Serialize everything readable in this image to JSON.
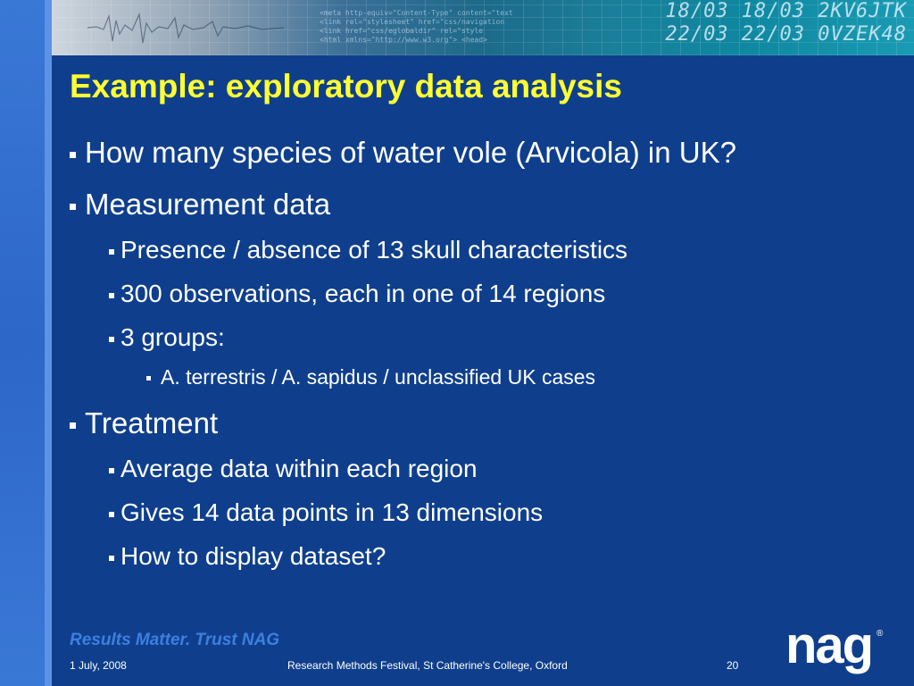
{
  "slide": {
    "title": "Example: exploratory data analysis",
    "bullets": [
      {
        "level": 1,
        "text": "How many species of water vole (Arvicola) in UK?"
      },
      {
        "level": 1,
        "text": "Measurement data"
      },
      {
        "level": 2,
        "text": "Presence / absence of 13 skull characteristics"
      },
      {
        "level": 2,
        "text": "300 observations, each in one of 14 regions"
      },
      {
        "level": 2,
        "text": "3 groups:"
      },
      {
        "level": 3,
        "text": "A. terrestris / A. sapidus / unclassified UK cases"
      },
      {
        "level": 1,
        "text": "Treatment"
      },
      {
        "level": 2,
        "text": "Average data within each region"
      },
      {
        "level": 2,
        "text": "Gives 14 data points in 13 dimensions"
      },
      {
        "level": 2,
        "text": "How to display dataset?"
      }
    ]
  },
  "banner": {
    "digits_line1": "18/03 18/03 2KV6JTK",
    "digits_line2": "22/03 22/03 0VZEK48"
  },
  "footer": {
    "tagline": "Results Matter. Trust NAG",
    "date": "1 July, 2008",
    "event": "Research Methods Festival, St Catherine's College, Oxford",
    "page_number": "20",
    "logo_text": "nag",
    "logo_mark": "®"
  },
  "colors": {
    "background": "#0f3f8c",
    "title": "#ffff33",
    "tagline": "#3d7fe0",
    "text": "#ffffff"
  }
}
